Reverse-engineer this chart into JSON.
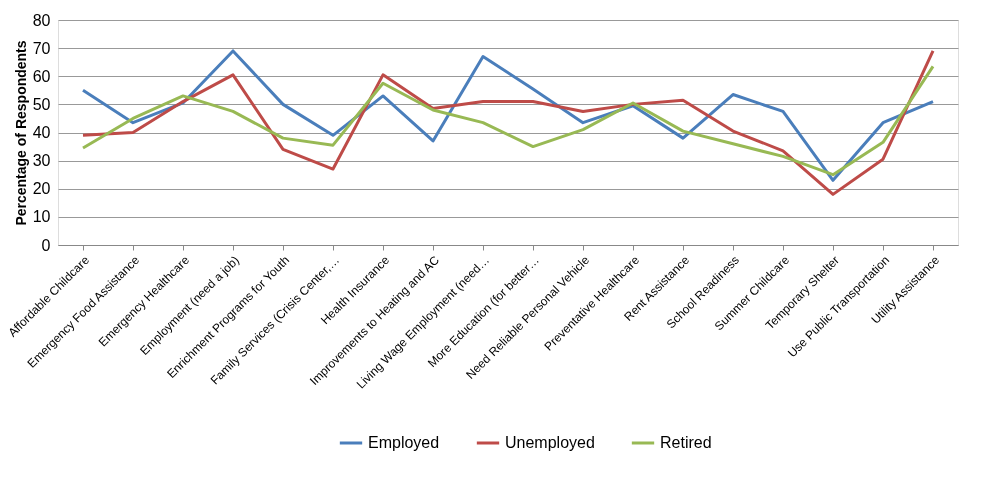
{
  "chart_data": {
    "type": "line",
    "ylabel": "Percentage of Respondents",
    "categories": [
      "Affordable Childcare",
      "Emergency Food Assistance",
      "Emergency Healthcare",
      "Employment (need a job)",
      "Enrichment Programs for Youth",
      "Family Services (Crisis Center,…",
      "Health Insurance",
      "Improvements to Heating and AC",
      "Living Wage Employment (need…",
      "More Education (for better…",
      "Need Reliable Personal Vehicle",
      "Preventative Healthcare",
      "Rent Assistance",
      "School Readiness",
      "Summer Childcare",
      "Temporary Shelter",
      "Use Public Transportation",
      "Utility Assistance"
    ],
    "series": [
      {
        "name": "Employed",
        "color": "#4a7ebb",
        "values": [
          55,
          43.5,
          50.5,
          69,
          50,
          39,
          53,
          37,
          67,
          55.5,
          43.5,
          49.5,
          38,
          53.5,
          47.5,
          23,
          43.5,
          51
        ]
      },
      {
        "name": "Unemployed",
        "color": "#be4b48",
        "values": [
          39,
          40,
          51,
          60.5,
          34,
          27,
          60.5,
          48.5,
          51,
          51,
          47.5,
          50,
          51.5,
          40.5,
          33.5,
          18,
          30.5,
          69
        ]
      },
      {
        "name": "Retired",
        "color": "#98b954",
        "values": [
          34.5,
          45,
          53,
          47.5,
          38,
          35.5,
          57.5,
          48,
          43.5,
          35,
          41,
          50.5,
          40.5,
          36,
          31.5,
          25,
          36.5,
          63.5
        ]
      }
    ],
    "ylim": [
      0,
      80
    ],
    "yticks": [
      0,
      10,
      20,
      30,
      40,
      50,
      60,
      70,
      80
    ],
    "grid": "y",
    "legend": "bottom",
    "marker": "none",
    "line_style": "solid"
  }
}
